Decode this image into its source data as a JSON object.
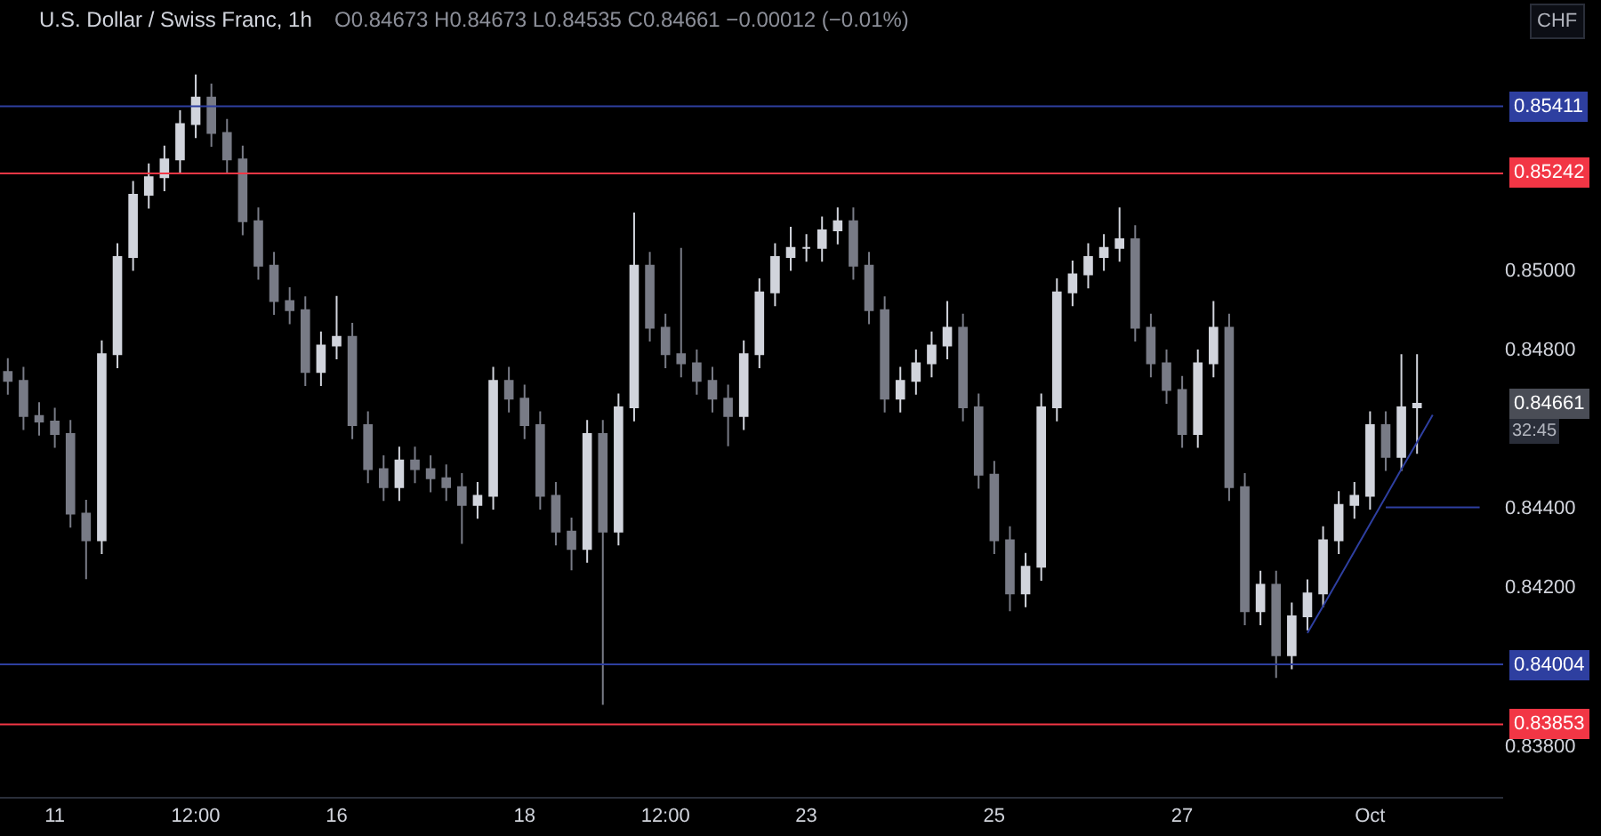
{
  "chart_data": {
    "type": "candlestick",
    "title": "U.S. Dollar / Swiss Franc, 1h",
    "subtitle": "O0.84673 H0.84673 L0.84535 C0.84661 −0.00012 (−0.01%)",
    "categories": [
      null,
      null,
      null,
      "11",
      null,
      null,
      null,
      null,
      null,
      null,
      null,
      null,
      "12:00",
      null,
      null,
      null,
      null,
      null,
      null,
      null,
      null,
      "16",
      null,
      null,
      null,
      null,
      null,
      null,
      null,
      null,
      null,
      null,
      null,
      "18",
      null,
      null,
      null,
      null,
      null,
      null,
      null,
      null,
      "12:00",
      null,
      null,
      null,
      null,
      null,
      null,
      null,
      null,
      "23",
      null,
      null,
      null,
      null,
      null,
      null,
      null,
      null,
      null,
      null,
      null,
      "25",
      null,
      null,
      null,
      null,
      null,
      null,
      null,
      null,
      null,
      null,
      null,
      "27",
      null,
      null,
      null,
      null,
      null,
      null,
      null,
      null,
      null,
      null,
      null,
      "Oct",
      null,
      null,
      null,
      null,
      null,
      null,
      null,
      null
    ],
    "colors": [
      "#787b86",
      "#787b86",
      "#787b86",
      "#787b86",
      "#787b86",
      "#787b86",
      "#d1d4dc",
      "#d1d4dc",
      "#d1d4dc",
      "#d1d4dc",
      "#d1d4dc",
      "#d1d4dc",
      "#d1d4dc",
      "#787b86",
      "#787b86",
      "#787b86",
      "#787b86",
      "#787b86",
      "#787b86",
      "#787b86",
      "#d1d4dc",
      "#d1d4dc",
      "#787b86",
      "#787b86",
      "#787b86",
      "#d1d4dc",
      "#787b86",
      "#787b86",
      "#787b86",
      "#787b86",
      "#d1d4dc",
      "#d1d4dc",
      "#787b86",
      "#787b86",
      "#787b86",
      "#787b86",
      "#787b86",
      "#d1d4dc",
      "#787b86",
      "#d1d4dc",
      "#d1d4dc",
      "#787b86",
      "#787b86",
      "#787b86",
      "#787b86",
      "#787b86",
      "#787b86",
      "#d1d4dc",
      "#d1d4dc",
      "#d1d4dc",
      "#d1d4dc",
      "#d1d4dc",
      "#d1d4dc",
      "#d1d4dc",
      "#787b86",
      "#787b86",
      "#787b86",
      "#d1d4dc",
      "#d1d4dc",
      "#d1d4dc",
      "#d1d4dc",
      "#787b86",
      "#787b86",
      "#787b86",
      "#787b86",
      "#d1d4dc",
      "#d1d4dc",
      "#d1d4dc",
      "#d1d4dc",
      "#d1d4dc",
      "#d1d4dc",
      "#d1d4dc",
      "#787b86",
      "#787b86",
      "#787b86",
      "#787b86",
      "#d1d4dc",
      "#d1d4dc",
      "#787b86",
      "#787b86",
      "#d1d4dc",
      "#787b86",
      "#d1d4dc",
      "#d1d4dc",
      "#d1d4dc",
      "#d1d4dc",
      "#d1d4dc",
      "#d1d4dc",
      "#787b86",
      "#d1d4dc",
      "#d1d4dc",
      null,
      null,
      null,
      null,
      null
    ],
    "ohlc": [
      [
        0.84741,
        0.84776,
        0.84684,
        0.84719
      ],
      [
        0.84719,
        0.84754,
        0.84595,
        0.8463
      ],
      [
        0.8463,
        0.84665,
        0.84581,
        0.84616
      ],
      [
        0.84616,
        0.84651,
        0.8455,
        0.84585
      ],
      [
        0.84585,
        0.8462,
        0.84349,
        0.84384
      ],
      [
        0.84384,
        0.84419,
        0.84219,
        0.84317
      ],
      [
        0.84317,
        0.84821,
        0.84282,
        0.84786
      ],
      [
        0.84786,
        0.85066,
        0.84751,
        0.85031
      ],
      [
        0.85031,
        0.85223,
        0.84996,
        0.85188
      ],
      [
        0.85188,
        0.85267,
        0.85153,
        0.85232
      ],
      [
        0.85232,
        0.85312,
        0.85197,
        0.85277
      ],
      [
        0.85277,
        0.85401,
        0.85242,
        0.85366
      ],
      [
        0.85366,
        0.85491,
        0.85331,
        0.85433
      ],
      [
        0.85433,
        0.85468,
        0.85309,
        0.85344
      ],
      [
        0.85344,
        0.85379,
        0.85242,
        0.85277
      ],
      [
        0.85277,
        0.85312,
        0.85086,
        0.85121
      ],
      [
        0.85121,
        0.85156,
        0.84974,
        0.85009
      ],
      [
        0.85009,
        0.85044,
        0.84885,
        0.8492
      ],
      [
        0.8492,
        0.84955,
        0.84862,
        0.84897
      ],
      [
        0.84897,
        0.84932,
        0.84706,
        0.84741
      ],
      [
        0.84741,
        0.84843,
        0.84706,
        0.84808
      ],
      [
        0.84808,
        0.84933,
        0.84773,
        0.8483
      ],
      [
        0.8483,
        0.84865,
        0.84572,
        0.84607
      ],
      [
        0.84607,
        0.84642,
        0.84461,
        0.84496
      ],
      [
        0.84496,
        0.84531,
        0.84416,
        0.84451
      ],
      [
        0.84451,
        0.84553,
        0.84416,
        0.84518
      ],
      [
        0.84518,
        0.84553,
        0.84461,
        0.84496
      ],
      [
        0.84496,
        0.84531,
        0.84438,
        0.84473
      ],
      [
        0.84473,
        0.84508,
        0.84416,
        0.84451
      ],
      [
        0.84451,
        0.84486,
        0.84308,
        0.84406
      ],
      [
        0.84406,
        0.84464,
        0.84371,
        0.84429
      ],
      [
        0.84429,
        0.84754,
        0.84394,
        0.84719
      ],
      [
        0.84719,
        0.84754,
        0.84639,
        0.84674
      ],
      [
        0.84674,
        0.84709,
        0.84572,
        0.84607
      ],
      [
        0.84607,
        0.84642,
        0.84394,
        0.84429
      ],
      [
        0.84429,
        0.84464,
        0.84304,
        0.84339
      ],
      [
        0.84339,
        0.84374,
        0.84241,
        0.84295
      ],
      [
        0.84295,
        0.8462,
        0.8426,
        0.84585
      ],
      [
        0.84585,
        0.8462,
        0.83902,
        0.84339
      ],
      [
        0.84339,
        0.84687,
        0.84304,
        0.84652
      ],
      [
        0.84652,
        0.85143,
        0.84617,
        0.85009
      ],
      [
        0.85009,
        0.85044,
        0.84818,
        0.84853
      ],
      [
        0.84853,
        0.84888,
        0.84751,
        0.84786
      ],
      [
        0.84786,
        0.85054,
        0.84728,
        0.84763
      ],
      [
        0.84763,
        0.84798,
        0.84684,
        0.84719
      ],
      [
        0.84719,
        0.84754,
        0.84639,
        0.84674
      ],
      [
        0.84674,
        0.84709,
        0.84554,
        0.8463
      ],
      [
        0.8463,
        0.84821,
        0.84595,
        0.84786
      ],
      [
        0.84786,
        0.84977,
        0.84751,
        0.84942
      ],
      [
        0.84942,
        0.85066,
        0.84907,
        0.85031
      ],
      [
        0.85031,
        0.85107,
        0.84996,
        0.85054
      ],
      [
        0.85054,
        0.85089,
        0.85019,
        0.85054
      ],
      [
        0.85054,
        0.85133,
        0.85019,
        0.85098
      ],
      [
        0.85098,
        0.85156,
        0.85063,
        0.85121
      ],
      [
        0.85121,
        0.85156,
        0.84974,
        0.85009
      ],
      [
        0.85009,
        0.85044,
        0.84862,
        0.84897
      ],
      [
        0.84897,
        0.84932,
        0.84639,
        0.84674
      ],
      [
        0.84674,
        0.84754,
        0.84639,
        0.84719
      ],
      [
        0.84719,
        0.84798,
        0.84684,
        0.84763
      ],
      [
        0.84763,
        0.84843,
        0.84728,
        0.84808
      ],
      [
        0.84808,
        0.8492,
        0.84773,
        0.84853
      ],
      [
        0.84853,
        0.84888,
        0.84617,
        0.84652
      ],
      [
        0.84652,
        0.84687,
        0.84447,
        0.84482
      ],
      [
        0.84482,
        0.84517,
        0.84282,
        0.84317
      ],
      [
        0.84317,
        0.84352,
        0.84138,
        0.84183
      ],
      [
        0.84183,
        0.84285,
        0.84148,
        0.8425
      ],
      [
        0.8425,
        0.84687,
        0.84215,
        0.84652
      ],
      [
        0.84652,
        0.84977,
        0.84617,
        0.84942
      ],
      [
        0.84942,
        0.85022,
        0.84907,
        0.84987
      ],
      [
        0.84987,
        0.85066,
        0.84952,
        0.85031
      ],
      [
        0.85031,
        0.85089,
        0.84996,
        0.85054
      ],
      [
        0.85054,
        0.85156,
        0.85019,
        0.85076
      ],
      [
        0.85076,
        0.85111,
        0.84818,
        0.84853
      ],
      [
        0.84853,
        0.84888,
        0.84728,
        0.84763
      ],
      [
        0.84763,
        0.84798,
        0.84661,
        0.84696
      ],
      [
        0.84696,
        0.84731,
        0.8455,
        0.84585
      ],
      [
        0.84585,
        0.84798,
        0.8455,
        0.84763
      ],
      [
        0.84763,
        0.8492,
        0.84728,
        0.84853
      ],
      [
        0.84853,
        0.84888,
        0.84416,
        0.84451
      ],
      [
        0.84451,
        0.84486,
        0.84103,
        0.84138
      ],
      [
        0.84138,
        0.8424,
        0.84103,
        0.84205
      ],
      [
        0.84205,
        0.8424,
        0.8397,
        0.84027
      ],
      [
        0.84027,
        0.8416,
        0.83992,
        0.84125
      ],
      [
        0.84125,
        0.84218,
        0.8409,
        0.84183
      ],
      [
        0.84183,
        0.84352,
        0.84148,
        0.84317
      ],
      [
        0.84317,
        0.84441,
        0.84282,
        0.84406
      ],
      [
        0.84406,
        0.84464,
        0.84371,
        0.84429
      ],
      [
        0.84429,
        0.84642,
        0.84394,
        0.84607
      ],
      [
        0.84607,
        0.84642,
        0.84492,
        0.84527
      ],
      [
        0.84527,
        0.84786,
        0.84492,
        0.84652
      ],
      [
        0.84652,
        0.84786,
        0.84535,
        0.84661
      ],
      null,
      null,
      null,
      null,
      null
    ],
    "series": [
      {
        "type": "line",
        "color": "#2e3fa0",
        "values": [
          null,
          null,
          null,
          null,
          null,
          null,
          null,
          null,
          null,
          null,
          null,
          null,
          null,
          null,
          null,
          null,
          null,
          null,
          null,
          null,
          null,
          null,
          null,
          null,
          null,
          null,
          null,
          null,
          null,
          null,
          null,
          null,
          null,
          null,
          null,
          null,
          null,
          null,
          null,
          null,
          null,
          null,
          null,
          null,
          null,
          null,
          null,
          null,
          null,
          null,
          null,
          null,
          null,
          null,
          null,
          null,
          null,
          null,
          null,
          null,
          null,
          null,
          null,
          null,
          null,
          null,
          null,
          null,
          null,
          null,
          null,
          null,
          null,
          null,
          null,
          null,
          null,
          null,
          null,
          null,
          null,
          null,
          null,
          0.84083,
          0.84151,
          0.8422,
          0.84289,
          0.84358,
          0.84427,
          0.84496,
          0.84564,
          0.84633,
          null,
          null,
          null,
          null
        ]
      },
      {
        "type": "line",
        "color": "#2e3fa0",
        "values": [
          null,
          null,
          null,
          null,
          null,
          null,
          null,
          null,
          null,
          null,
          null,
          null,
          null,
          null,
          null,
          null,
          null,
          null,
          null,
          null,
          null,
          null,
          null,
          null,
          null,
          null,
          null,
          null,
          null,
          null,
          null,
          null,
          null,
          null,
          null,
          null,
          null,
          null,
          null,
          null,
          null,
          null,
          null,
          null,
          null,
          null,
          null,
          null,
          null,
          null,
          null,
          null,
          null,
          null,
          null,
          null,
          null,
          null,
          null,
          null,
          null,
          null,
          null,
          null,
          null,
          null,
          null,
          null,
          null,
          null,
          null,
          null,
          null,
          null,
          null,
          null,
          null,
          null,
          null,
          null,
          null,
          null,
          null,
          null,
          null,
          null,
          null,
          null,
          0.844,
          0.844,
          0.844,
          0.844,
          0.844,
          0.844,
          0.844,
          null
        ]
      }
    ],
    "ylim": [
      0.8367,
      0.85679
    ],
    "yticks": [
      {
        "value": 0.838,
        "label": "0.83800"
      },
      {
        "value": 0.842,
        "label": "0.84200"
      },
      {
        "value": 0.844,
        "label": "0.84400"
      },
      {
        "value": 0.848,
        "label": "0.84800"
      },
      {
        "value": 0.85,
        "label": "0.85000"
      }
    ],
    "ref_lines": [
      {
        "axis": "y",
        "value": 0.85411,
        "label": "0.85411",
        "color": "#2e3fa0"
      },
      {
        "axis": "y",
        "value": 0.85242,
        "label": "0.85242",
        "color": "#f23645"
      },
      {
        "axis": "y",
        "value": 0.84004,
        "label": "0.84004",
        "color": "#2e3fa0"
      },
      {
        "axis": "y",
        "value": 0.83853,
        "label": "0.83853",
        "color": "#f23645"
      }
    ],
    "annotations": [
      "0.84661",
      "32:45",
      "CHF"
    ],
    "grid": false
  }
}
